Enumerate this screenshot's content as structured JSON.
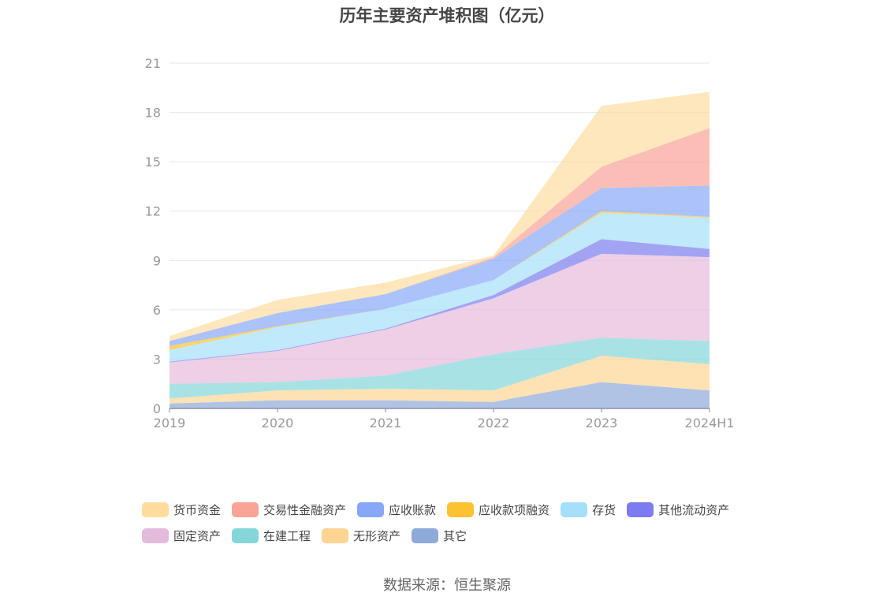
{
  "chart_data": {
    "type": "area",
    "stacked": true,
    "title": "历年主要资产堆积图（亿元）",
    "categories": [
      "2019",
      "2020",
      "2021",
      "2022",
      "2023",
      "2024H1"
    ],
    "ylim": [
      0,
      21
    ],
    "yticks": [
      "0",
      "3",
      "6",
      "9",
      "12",
      "15",
      "18",
      "21"
    ],
    "grid": true,
    "legend_position": "bottom",
    "series": [
      {
        "name": "其它",
        "color": "#8eaad9",
        "values": [
          0.3,
          0.5,
          0.5,
          0.4,
          1.6,
          1.1
        ]
      },
      {
        "name": "无形资产",
        "color": "#fdd593",
        "values": [
          0.3,
          0.6,
          0.7,
          0.7,
          1.6,
          1.6
        ]
      },
      {
        "name": "在建工程",
        "color": "#84d6d8",
        "values": [
          0.9,
          0.5,
          0.8,
          2.2,
          1.1,
          1.4
        ]
      },
      {
        "name": "固定资产",
        "color": "#e5bbdb",
        "values": [
          1.3,
          1.9,
          2.8,
          3.4,
          5.1,
          5.1
        ]
      },
      {
        "name": "其他流动资产",
        "color": "#7c7cf0",
        "values": [
          0.05,
          0.05,
          0.05,
          0.2,
          0.9,
          0.5
        ]
      },
      {
        "name": "存货",
        "color": "#a5dffa",
        "values": [
          0.7,
          1.4,
          1.2,
          0.9,
          1.6,
          1.9
        ]
      },
      {
        "name": "应收款项融资",
        "color": "#fcc232",
        "values": [
          0.25,
          0.05,
          0.0,
          0.0,
          0.1,
          0.05
        ]
      },
      {
        "name": "应收账款",
        "color": "#87a8f8",
        "values": [
          0.3,
          0.8,
          0.9,
          1.3,
          1.4,
          1.9
        ]
      },
      {
        "name": "交易性金融资产",
        "color": "#faa397",
        "values": [
          0.0,
          0.0,
          0.0,
          0.1,
          1.3,
          3.5
        ]
      },
      {
        "name": "货币资金",
        "color": "#fedd9f",
        "values": [
          0.3,
          0.8,
          0.7,
          0.1,
          3.7,
          2.2
        ]
      }
    ]
  },
  "legend": {
    "row1": [
      {
        "label": "货币资金",
        "color": "#fedd9f"
      },
      {
        "label": "交易性金融资产",
        "color": "#faa397"
      },
      {
        "label": "应收账款",
        "color": "#87a8f8"
      },
      {
        "label": "应收款项融资",
        "color": "#fcc232"
      },
      {
        "label": "存货",
        "color": "#a5dffa"
      },
      {
        "label": "其他流动资产",
        "color": "#7c7cf0"
      }
    ],
    "row2": [
      {
        "label": "固定资产",
        "color": "#e5bbdb"
      },
      {
        "label": "在建工程",
        "color": "#84d6d8"
      },
      {
        "label": "无形资产",
        "color": "#fdd593"
      },
      {
        "label": "其它",
        "color": "#8eaad9"
      }
    ]
  },
  "source": "数据来源：恒生聚源"
}
